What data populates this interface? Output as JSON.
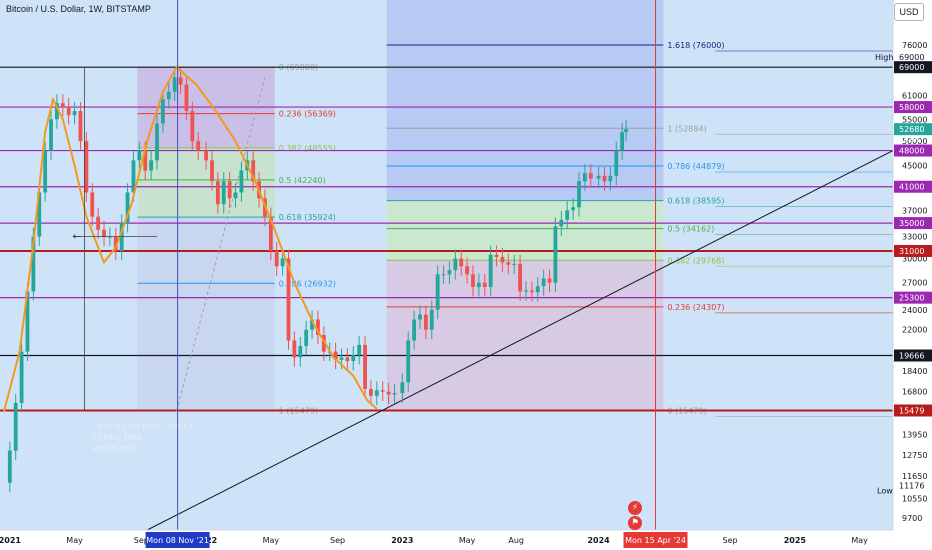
{
  "header": {
    "title": "Bitcoin / U.S. Dollar, 1W, BITSTAMP",
    "currency_button": "USD"
  },
  "colors": {
    "bg": "#cfe3f8",
    "candle_up": "#26a69a",
    "candle_down": "#ef5350",
    "curve": "#f39a1c",
    "trendline": "#131722",
    "cursor": "#3f51b5",
    "marker": "#e53935"
  },
  "x_axis": {
    "labels": [
      {
        "text": "2021",
        "x": 2021.0
      },
      {
        "text": "May",
        "x": 2021.33
      },
      {
        "text": "Sep",
        "x": 2021.67
      },
      {
        "text": "2022",
        "x": 2022.0
      },
      {
        "text": "May",
        "x": 2022.33
      },
      {
        "text": "Sep",
        "x": 2022.67
      },
      {
        "text": "2023",
        "x": 2023.0
      },
      {
        "text": "May",
        "x": 2023.33
      },
      {
        "text": "Aug",
        "x": 2023.58
      },
      {
        "text": "2024",
        "x": 2024.0
      },
      {
        "text": "Sep",
        "x": 2024.67
      },
      {
        "text": "2025",
        "x": 2025.0
      },
      {
        "text": "May",
        "x": 2025.33
      }
    ],
    "cursor": {
      "x": 2021.855,
      "label": "Mon 08 Nov '21"
    },
    "marker": {
      "x": 2024.29,
      "label": "Mon 15 Apr '24"
    }
  },
  "y_axis": {
    "scale": "log",
    "ticks": [
      76000,
      69000,
      61000,
      55000,
      50000,
      45000,
      41000,
      37000,
      33000,
      30000,
      27000,
      24000,
      22000,
      19666,
      18400,
      16800,
      15479,
      13950,
      12750,
      11650,
      10550,
      9700
    ],
    "price_tags": [
      {
        "value": 69000,
        "color": "#131722",
        "text": "69000"
      },
      {
        "value": 58000,
        "color": "#9c27b0",
        "text": "58000"
      },
      {
        "value": 52680,
        "color": "#26a69a",
        "text": "52680"
      },
      {
        "value": 48000,
        "color": "#9c27b0",
        "text": "48000"
      },
      {
        "value": 41000,
        "color": "#9c27b0",
        "text": "41000"
      },
      {
        "value": 35000,
        "color": "#9c27b0",
        "text": "35000"
      },
      {
        "value": 31000,
        "color": "#b71c1c",
        "text": "31000"
      },
      {
        "value": 25300,
        "color": "#9c27b0",
        "text": "25300"
      },
      {
        "value": 19666,
        "color": "#131722",
        "text": "19666"
      },
      {
        "value": 15479,
        "color": "#b71c1c",
        "text": "15479"
      }
    ],
    "high": {
      "label": "High",
      "value": "69000"
    },
    "low": {
      "label": "Low",
      "value": "11176"
    },
    "countdown": "6d 9h"
  },
  "horizontal_levels": [
    {
      "value": 69000,
      "color": "#131722"
    },
    {
      "value": 58000,
      "color": "#9c27b0"
    },
    {
      "value": 48000,
      "color": "#9c27b0"
    },
    {
      "value": 41000,
      "color": "#9c27b0"
    },
    {
      "value": 35000,
      "color": "#9c27b0"
    },
    {
      "value": 31000,
      "color": "#b71c1c"
    },
    {
      "value": 25300,
      "color": "#9c27b0"
    },
    {
      "value": 19666,
      "color": "#131722"
    },
    {
      "value": 15479,
      "color": "#b71c1c"
    }
  ],
  "fib_retracements": [
    {
      "x_start": 2021.65,
      "x_end": 2022.35,
      "levels": [
        {
          "ratio": "0",
          "price": 69000,
          "label": "0 (69000)",
          "color": "#9e9e9e"
        },
        {
          "ratio": "0.236",
          "price": 56369,
          "label": "0.236 (56369)",
          "color": "#e53935"
        },
        {
          "ratio": "0.382",
          "price": 48555,
          "label": "0.382 (48555)",
          "color": "#8bc34a"
        },
        {
          "ratio": "0.5",
          "price": 42240,
          "label": "0.5 (42240)",
          "color": "#4caf50"
        },
        {
          "ratio": "0.618",
          "price": 35924,
          "label": "0.618 (35924)",
          "color": "#26a69a"
        },
        {
          "ratio": "0.786",
          "price": 26932,
          "label": "0.786 (26932)",
          "color": "#2196f3"
        },
        {
          "ratio": "1",
          "price": 15479,
          "label": "1 (15479)",
          "color": "#9e9e9e"
        }
      ]
    },
    {
      "x_start": 2022.92,
      "x_end": 2024.33,
      "levels": [
        {
          "ratio": "1.618",
          "price": 76000,
          "label": "1.618 (76000)",
          "color": "#1a237e"
        },
        {
          "ratio": "1",
          "price": 52884,
          "label": "1 (52884)",
          "color": "#9e9e9e"
        },
        {
          "ratio": "0.786",
          "price": 44879,
          "label": "0.786 (44879)",
          "color": "#2196f3"
        },
        {
          "ratio": "0.618",
          "price": 38595,
          "label": "0.618 (38595)",
          "color": "#26a69a"
        },
        {
          "ratio": "0.5",
          "price": 34162,
          "label": "0.5 (34162)",
          "color": "#4caf50"
        },
        {
          "ratio": "0.382",
          "price": 29768,
          "label": "0.382 (29768)",
          "color": "#8bc34a"
        },
        {
          "ratio": "0.236",
          "price": 24307,
          "label": "0.236 (24307)",
          "color": "#e53935"
        },
        {
          "ratio": "0",
          "price": 15479,
          "label": "0 (15479)",
          "color": "#9e9e9e"
        }
      ]
    }
  ],
  "measure_box": {
    "lines": [
      "−33679 (−71.88%) −3367.9",
      "57 bars, 399d",
      "Vol 185.451K"
    ]
  },
  "chart_data": {
    "type": "candlestick",
    "title": "Bitcoin / U.S. Dollar, 1W, BITSTAMP",
    "xlim": [
      2020.95,
      2025.5
    ],
    "ylim": [
      9200,
      84000
    ],
    "y_scale": "log",
    "grid": false,
    "price_path": [
      [
        2020.97,
        11300
      ],
      [
        2021.0,
        13000
      ],
      [
        2021.03,
        16000
      ],
      [
        2021.06,
        20000
      ],
      [
        2021.09,
        26000
      ],
      [
        2021.12,
        33000
      ],
      [
        2021.15,
        40000
      ],
      [
        2021.18,
        48000
      ],
      [
        2021.21,
        55000
      ],
      [
        2021.24,
        59000
      ],
      [
        2021.27,
        58000
      ],
      [
        2021.3,
        56000
      ],
      [
        2021.33,
        57000
      ],
      [
        2021.36,
        50000
      ],
      [
        2021.39,
        40000
      ],
      [
        2021.42,
        36000
      ],
      [
        2021.45,
        34000
      ],
      [
        2021.48,
        33000
      ],
      [
        2021.51,
        33000
      ],
      [
        2021.54,
        31000
      ],
      [
        2021.57,
        35000
      ],
      [
        2021.6,
        40000
      ],
      [
        2021.63,
        46000
      ],
      [
        2021.66,
        48000
      ],
      [
        2021.69,
        44000
      ],
      [
        2021.72,
        46000
      ],
      [
        2021.75,
        54000
      ],
      [
        2021.78,
        60000
      ],
      [
        2021.81,
        62000
      ],
      [
        2021.84,
        66000
      ],
      [
        2021.87,
        64000
      ],
      [
        2021.9,
        57000
      ],
      [
        2021.93,
        50000
      ],
      [
        2021.96,
        48000
      ],
      [
        2022.0,
        46000
      ],
      [
        2022.03,
        42000
      ],
      [
        2022.06,
        38000
      ],
      [
        2022.09,
        42000
      ],
      [
        2022.12,
        39000
      ],
      [
        2022.15,
        40000
      ],
      [
        2022.18,
        44000
      ],
      [
        2022.21,
        46000
      ],
      [
        2022.24,
        42000
      ],
      [
        2022.27,
        39000
      ],
      [
        2022.3,
        36000
      ],
      [
        2022.33,
        31000
      ],
      [
        2022.36,
        29000
      ],
      [
        2022.39,
        30000
      ],
      [
        2022.42,
        21000
      ],
      [
        2022.45,
        19500
      ],
      [
        2022.48,
        20500
      ],
      [
        2022.51,
        22000
      ],
      [
        2022.54,
        23000
      ],
      [
        2022.57,
        21500
      ],
      [
        2022.6,
        20000
      ],
      [
        2022.63,
        20000
      ],
      [
        2022.66,
        19300
      ],
      [
        2022.69,
        19500
      ],
      [
        2022.72,
        19200
      ],
      [
        2022.75,
        19700
      ],
      [
        2022.78,
        20600
      ],
      [
        2022.81,
        17000
      ],
      [
        2022.84,
        16500
      ],
      [
        2022.87,
        16900
      ],
      [
        2022.9,
        16800
      ],
      [
        2022.93,
        16600
      ],
      [
        2022.96,
        16700
      ],
      [
        2023.0,
        17500
      ],
      [
        2023.03,
        21000
      ],
      [
        2023.06,
        23000
      ],
      [
        2023.09,
        23500
      ],
      [
        2023.12,
        22000
      ],
      [
        2023.15,
        24000
      ],
      [
        2023.18,
        28000
      ],
      [
        2023.21,
        28000
      ],
      [
        2023.24,
        28500
      ],
      [
        2023.27,
        30000
      ],
      [
        2023.3,
        29000
      ],
      [
        2023.33,
        28000
      ],
      [
        2023.36,
        26500
      ],
      [
        2023.39,
        27000
      ],
      [
        2023.42,
        26500
      ],
      [
        2023.45,
        30500
      ],
      [
        2023.48,
        30200
      ],
      [
        2023.51,
        29500
      ],
      [
        2023.54,
        29200
      ],
      [
        2023.57,
        29300
      ],
      [
        2023.6,
        26000
      ],
      [
        2023.63,
        26100
      ],
      [
        2023.66,
        25900
      ],
      [
        2023.69,
        26600
      ],
      [
        2023.72,
        27500
      ],
      [
        2023.75,
        27000
      ],
      [
        2023.78,
        34500
      ],
      [
        2023.81,
        35500
      ],
      [
        2023.84,
        37000
      ],
      [
        2023.87,
        37500
      ],
      [
        2023.9,
        42000
      ],
      [
        2023.93,
        43500
      ],
      [
        2023.96,
        42500
      ],
      [
        2024.0,
        43000
      ],
      [
        2024.03,
        42000
      ],
      [
        2024.06,
        43000
      ],
      [
        2024.09,
        48000
      ],
      [
        2024.12,
        52000
      ],
      [
        2024.14,
        52680
      ]
    ],
    "curve": [
      [
        2020.97,
        15400
      ],
      [
        2021.05,
        20000
      ],
      [
        2021.12,
        32000
      ],
      [
        2021.18,
        52000
      ],
      [
        2021.22,
        60000
      ],
      [
        2021.27,
        55000
      ],
      [
        2021.33,
        45000
      ],
      [
        2021.39,
        36000
      ],
      [
        2021.45,
        31500
      ],
      [
        2021.48,
        29500
      ],
      [
        2021.54,
        31500
      ],
      [
        2021.62,
        38000
      ],
      [
        2021.7,
        50000
      ],
      [
        2021.78,
        62000
      ],
      [
        2021.85,
        69000
      ],
      [
        2021.95,
        64000
      ],
      [
        2022.05,
        57000
      ],
      [
        2022.15,
        50000
      ],
      [
        2022.25,
        42000
      ],
      [
        2022.35,
        34000
      ],
      [
        2022.45,
        27000
      ],
      [
        2022.55,
        22500
      ],
      [
        2022.65,
        19500
      ],
      [
        2022.75,
        18000
      ],
      [
        2022.82,
        16200
      ],
      [
        2022.87,
        15600
      ]
    ],
    "trendline": {
      "from": [
        2021.7,
        9200
      ],
      "to": [
        2025.5,
        48000
      ]
    },
    "last_price": 52680
  }
}
